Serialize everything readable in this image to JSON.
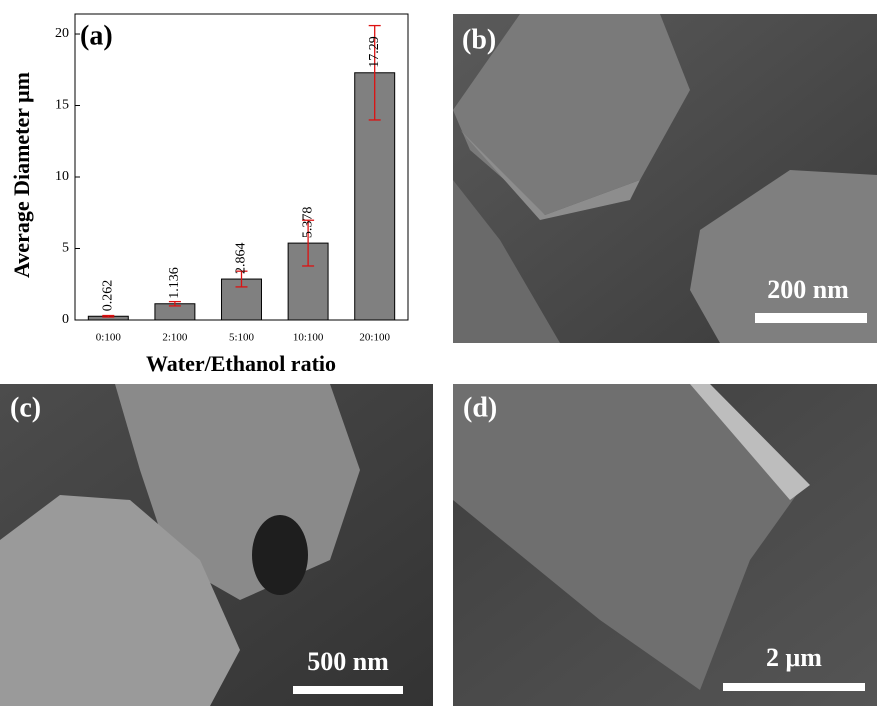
{
  "chart_data": {
    "type": "bar",
    "title": "(a)",
    "x_label": "Water/Ethanol ratio",
    "y_label": "Average Diameter μm",
    "categories": [
      "0:100",
      "2:100",
      "5:100",
      "10:100",
      "20:100"
    ],
    "values": [
      0.262,
      1.136,
      2.864,
      5.378,
      17.29
    ],
    "errors": [
      0.05,
      0.15,
      0.55,
      1.6,
      3.3
    ],
    "color": "#808080",
    "error_color": "#dd1111",
    "ylim": [
      0,
      21.4
    ],
    "yticks": [
      0,
      5,
      10,
      15,
      20
    ]
  },
  "images": [
    {
      "label": "(b)",
      "scale": "200 nm"
    },
    {
      "label": "(c)",
      "scale": "500 nm"
    },
    {
      "label": "(d)",
      "scale": "2 μm"
    }
  ]
}
